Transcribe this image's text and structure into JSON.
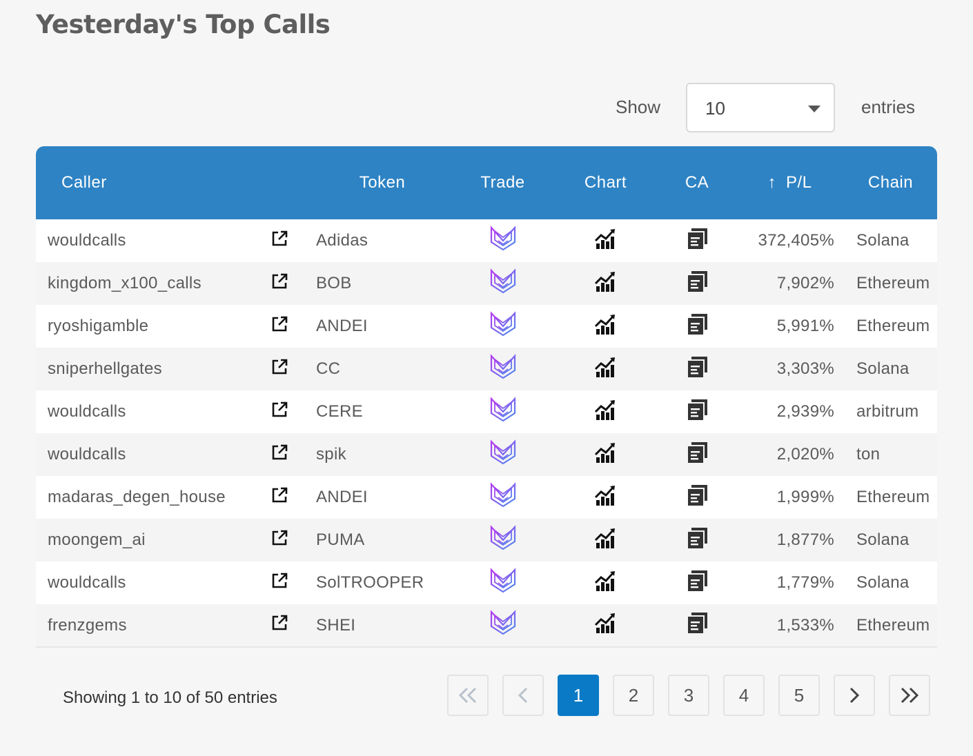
{
  "page": {
    "title": "Yesterday's Top Calls"
  },
  "length_control": {
    "show_label": "Show",
    "value": "10",
    "entries_label": "entries"
  },
  "table": {
    "columns": {
      "caller": "Caller",
      "token": "Token",
      "trade": "Trade",
      "chart": "Chart",
      "ca": "CA",
      "pl": "P/L",
      "chain": "Chain"
    },
    "sort_indicator": "↑",
    "rows": [
      {
        "caller": "wouldcalls",
        "token": "Adidas",
        "pl": "372,405%",
        "chain": "Solana"
      },
      {
        "caller": "kingdom_x100_calls",
        "token": "BOB",
        "pl": "7,902%",
        "chain": "Ethereum"
      },
      {
        "caller": "ryoshigamble",
        "token": "ANDEI",
        "pl": "5,991%",
        "chain": "Ethereum"
      },
      {
        "caller": "sniperhellgates",
        "token": "CC",
        "pl": "3,303%",
        "chain": "Solana"
      },
      {
        "caller": "wouldcalls",
        "token": "CERE",
        "pl": "2,939%",
        "chain": "arbitrum"
      },
      {
        "caller": "wouldcalls",
        "token": "spik",
        "pl": "2,020%",
        "chain": "ton"
      },
      {
        "caller": "madaras_degen_house",
        "token": "ANDEI",
        "pl": "1,999%",
        "chain": "Ethereum"
      },
      {
        "caller": "moongem_ai",
        "token": "PUMA",
        "pl": "1,877%",
        "chain": "Solana"
      },
      {
        "caller": "wouldcalls",
        "token": "SolTROOPER",
        "pl": "1,779%",
        "chain": "Solana"
      },
      {
        "caller": "frenzgems",
        "token": "SHEI",
        "pl": "1,533%",
        "chain": "Ethereum"
      }
    ],
    "icons": {
      "link": "external-link-icon",
      "trade": "trade-logo-icon",
      "chart": "bar-chart-trend-icon",
      "ca": "copy-contract-icon"
    }
  },
  "footer": {
    "info": "Showing 1 to 10 of 50 entries",
    "pages": [
      "1",
      "2",
      "3",
      "4",
      "5"
    ],
    "current_page": "1"
  },
  "colors": {
    "header_bg": "#2e83c4",
    "active_page": "#0a7ac6",
    "trade_gradient_start": "#b33cf0",
    "trade_gradient_end": "#4a8cf0"
  }
}
